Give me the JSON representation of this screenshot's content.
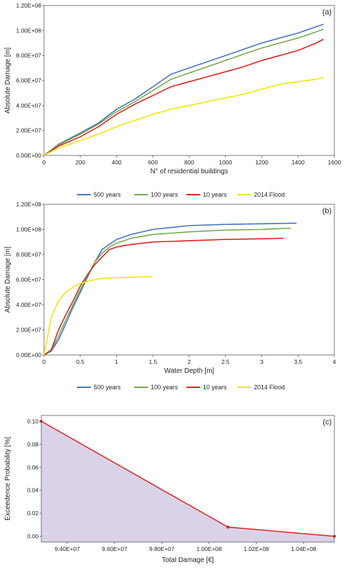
{
  "chart_data": [
    {
      "panel": "(a)",
      "type": "line",
      "xlabel": "N° of residential buildings",
      "ylabel": "Absolute Damage [m]",
      "xlim": [
        0,
        1600
      ],
      "ylim": [
        0,
        120000000
      ],
      "xticks": [
        "0",
        "200",
        "400",
        "600",
        "800",
        "1000",
        "1200",
        "1400",
        "1600"
      ],
      "yticks": [
        "0.00E+00",
        "2.00E+07",
        "4.00E+07",
        "6.00E+07",
        "8.00E+07",
        "1.00E+08",
        "1.20E+08"
      ],
      "grid": false,
      "legend": "below",
      "series": [
        {
          "name": "500 years",
          "color": "#4472c4",
          "points": [
            [
              0,
              0
            ],
            [
              80,
              9000000
            ],
            [
              200,
              18000000
            ],
            [
              300,
              26000000
            ],
            [
              400,
              37000000
            ],
            [
              500,
              45000000
            ],
            [
              600,
              55000000
            ],
            [
              700,
              65000000
            ],
            [
              800,
              70000000
            ],
            [
              900,
              75000000
            ],
            [
              1000,
              80000000
            ],
            [
              1100,
              85000000
            ],
            [
              1200,
              90000000
            ],
            [
              1300,
              94000000
            ],
            [
              1400,
              98000000
            ],
            [
              1500,
              103000000
            ],
            [
              1540,
              105000000
            ]
          ]
        },
        {
          "name": "100 years",
          "color": "#70ad47",
          "points": [
            [
              0,
              0
            ],
            [
              80,
              8500000
            ],
            [
              200,
              17000000
            ],
            [
              300,
              25000000
            ],
            [
              400,
              35000000
            ],
            [
              500,
              43000000
            ],
            [
              600,
              52000000
            ],
            [
              700,
              61000000
            ],
            [
              800,
              66000000
            ],
            [
              900,
              71000000
            ],
            [
              1000,
              76000000
            ],
            [
              1100,
              81000000
            ],
            [
              1200,
              86000000
            ],
            [
              1300,
              90000000
            ],
            [
              1400,
              94000000
            ],
            [
              1500,
              99000000
            ],
            [
              1540,
              101000000
            ]
          ]
        },
        {
          "name": "10 years",
          "color": "#e0201b",
          "points": [
            [
              0,
              0
            ],
            [
              80,
              7500000
            ],
            [
              200,
              15000000
            ],
            [
              300,
              23000000
            ],
            [
              400,
              33000000
            ],
            [
              500,
              41000000
            ],
            [
              600,
              48000000
            ],
            [
              700,
              55000000
            ],
            [
              800,
              59000000
            ],
            [
              900,
              63000000
            ],
            [
              1000,
              67000000
            ],
            [
              1100,
              71000000
            ],
            [
              1200,
              76000000
            ],
            [
              1300,
              80000000
            ],
            [
              1400,
              84000000
            ],
            [
              1500,
              90000000
            ],
            [
              1540,
              93000000
            ]
          ]
        },
        {
          "name": "2014 Flood",
          "color": "#f2e600",
          "points": [
            [
              0,
              0
            ],
            [
              80,
              6000000
            ],
            [
              200,
              12000000
            ],
            [
              300,
              17000000
            ],
            [
              400,
              23000000
            ],
            [
              500,
              28000000
            ],
            [
              600,
              33000000
            ],
            [
              700,
              37000000
            ],
            [
              800,
              40000000
            ],
            [
              900,
              43000000
            ],
            [
              1000,
              46000000
            ],
            [
              1100,
              49000000
            ],
            [
              1200,
              53000000
            ],
            [
              1300,
              57000000
            ],
            [
              1400,
              59000000
            ],
            [
              1500,
              61000000
            ],
            [
              1540,
              62500000
            ]
          ]
        }
      ]
    },
    {
      "panel": "(b)",
      "type": "line",
      "xlabel": "Water Depth [m]",
      "ylabel": "Absolute Damage [m]",
      "xlim": [
        0,
        4
      ],
      "ylim": [
        0,
        120000000
      ],
      "xticks": [
        "0",
        "0.5",
        "1",
        "1.5",
        "2",
        "2.5",
        "3",
        "3.5",
        "4"
      ],
      "yticks": [
        "0.00E+00",
        "2.00E+07",
        "4.00E+07",
        "6.00E+07",
        "8.00E+07",
        "1.00E+08",
        "1.20E+08"
      ],
      "grid": false,
      "legend": "below",
      "series": [
        {
          "name": "500 years",
          "color": "#4472c4",
          "points": [
            [
              0,
              0
            ],
            [
              0.1,
              3000000
            ],
            [
              0.2,
              12000000
            ],
            [
              0.3,
              25000000
            ],
            [
              0.4,
              38000000
            ],
            [
              0.5,
              50000000
            ],
            [
              0.6,
              62000000
            ],
            [
              0.7,
              74000000
            ],
            [
              0.8,
              84000000
            ],
            [
              0.9,
              88000000
            ],
            [
              1,
              92000000
            ],
            [
              1.2,
              96000000
            ],
            [
              1.5,
              100000000
            ],
            [
              2,
              103000000
            ],
            [
              2.5,
              104000000
            ],
            [
              3,
              104500000
            ],
            [
              3.48,
              105000000
            ]
          ]
        },
        {
          "name": "100 years",
          "color": "#70ad47",
          "points": [
            [
              0,
              0
            ],
            [
              0.1,
              3500000
            ],
            [
              0.2,
              15000000
            ],
            [
              0.3,
              28000000
            ],
            [
              0.4,
              40000000
            ],
            [
              0.5,
              52000000
            ],
            [
              0.6,
              63000000
            ],
            [
              0.7,
              74000000
            ],
            [
              0.8,
              81000000
            ],
            [
              0.9,
              86000000
            ],
            [
              1,
              89000000
            ],
            [
              1.2,
              93000000
            ],
            [
              1.5,
              96000000
            ],
            [
              2,
              98000000
            ],
            [
              2.5,
              99500000
            ],
            [
              3,
              100000000
            ],
            [
              3.4,
              101000000
            ]
          ]
        },
        {
          "name": "10 years",
          "color": "#e0201b",
          "points": [
            [
              0,
              0
            ],
            [
              0.1,
              4000000
            ],
            [
              0.2,
              20000000
            ],
            [
              0.3,
              32000000
            ],
            [
              0.4,
              43000000
            ],
            [
              0.5,
              55000000
            ],
            [
              0.6,
              64000000
            ],
            [
              0.7,
              72000000
            ],
            [
              0.8,
              78000000
            ],
            [
              0.9,
              84000000
            ],
            [
              1,
              86000000
            ],
            [
              1.2,
              88000000
            ],
            [
              1.5,
              90000000
            ],
            [
              2,
              91000000
            ],
            [
              2.5,
              92000000
            ],
            [
              3,
              92500000
            ],
            [
              3.3,
              93000000
            ]
          ]
        },
        {
          "name": "2014 Flood",
          "color": "#f2e600",
          "points": [
            [
              0,
              0
            ],
            [
              0.05,
              15000000
            ],
            [
              0.1,
              30000000
            ],
            [
              0.2,
              43000000
            ],
            [
              0.3,
              50000000
            ],
            [
              0.4,
              54000000
            ],
            [
              0.5,
              57000000
            ],
            [
              0.6,
              58500000
            ],
            [
              0.7,
              60000000
            ],
            [
              0.8,
              61000000
            ],
            [
              1,
              61500000
            ],
            [
              1.2,
              62000000
            ],
            [
              1.49,
              62500000
            ]
          ]
        }
      ]
    },
    {
      "panel": "(c)",
      "type": "area",
      "xlabel": "Total Damage [€]",
      "ylabel": "Exceedence Probability [%]",
      "xlim": [
        92900000,
        105300000
      ],
      "ylim": [
        -0.005,
        0.105
      ],
      "xticks": [
        {
          "value": 94000000,
          "label": "9.40E+07"
        },
        {
          "value": 96000000,
          "label": "9.60E+07"
        },
        {
          "value": 98000000,
          "label": "9.80E+07"
        },
        {
          "value": 100000000,
          "label": "1.00E+08"
        },
        {
          "value": 102000000,
          "label": "1.02E+08"
        },
        {
          "value": 104000000,
          "label": "1.04E+08"
        }
      ],
      "yticks": [
        {
          "value": 0,
          "label": "0.00"
        },
        {
          "value": 0.02,
          "label": "0.02"
        },
        {
          "value": 0.04,
          "label": "0.04"
        },
        {
          "value": 0.06,
          "label": "0.06"
        },
        {
          "value": 0.08,
          "label": "0.08"
        },
        {
          "value": 0.1,
          "label": "0.10"
        }
      ],
      "grid": false,
      "fill_color": "#d9d2e9",
      "line_color": "#e0201b",
      "points": [
        [
          92900000,
          0.1
        ],
        [
          100800000,
          0.008
        ],
        [
          105300000,
          0.0
        ]
      ]
    }
  ]
}
